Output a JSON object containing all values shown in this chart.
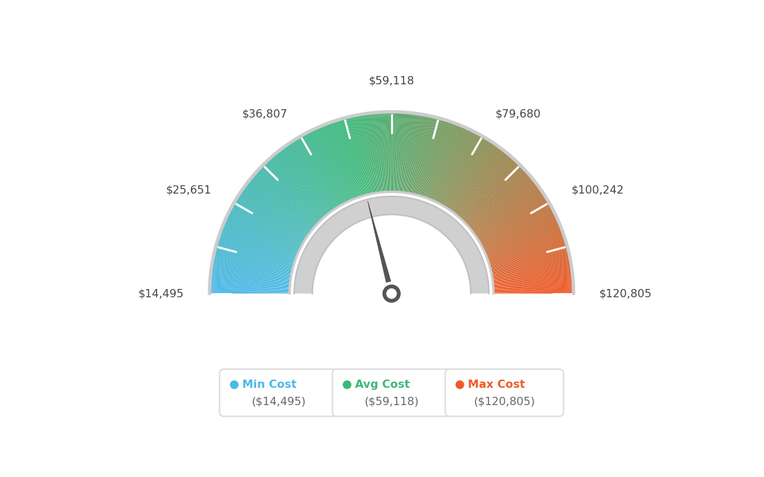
{
  "min_val": 14495,
  "max_val": 120805,
  "avg_val": 59118,
  "label_formats": [
    "$14,495",
    "$25,651",
    "$36,807",
    "$59,118",
    "$79,680",
    "$100,242",
    "$120,805"
  ],
  "label_angles_deg": [
    180,
    150,
    120,
    90,
    60,
    30,
    0
  ],
  "min_color": "#4db8e8",
  "avg_color": "#3db87a",
  "max_color": "#f05a28",
  "needle_color": "#555555",
  "bg_color": "#ffffff",
  "legend_label_min": "Min Cost",
  "legend_label_avg": "Avg Cost",
  "legend_label_max": "Max Cost",
  "legend_val_min": "($14,495)",
  "legend_val_avg": "($59,118)",
  "legend_val_max": "($120,805)",
  "r_outer": 1.0,
  "r_inner_gauge": 0.56,
  "r_track_outer": 0.535,
  "r_track_inner": 0.435,
  "n_segments": 400,
  "n_ticks": 13
}
